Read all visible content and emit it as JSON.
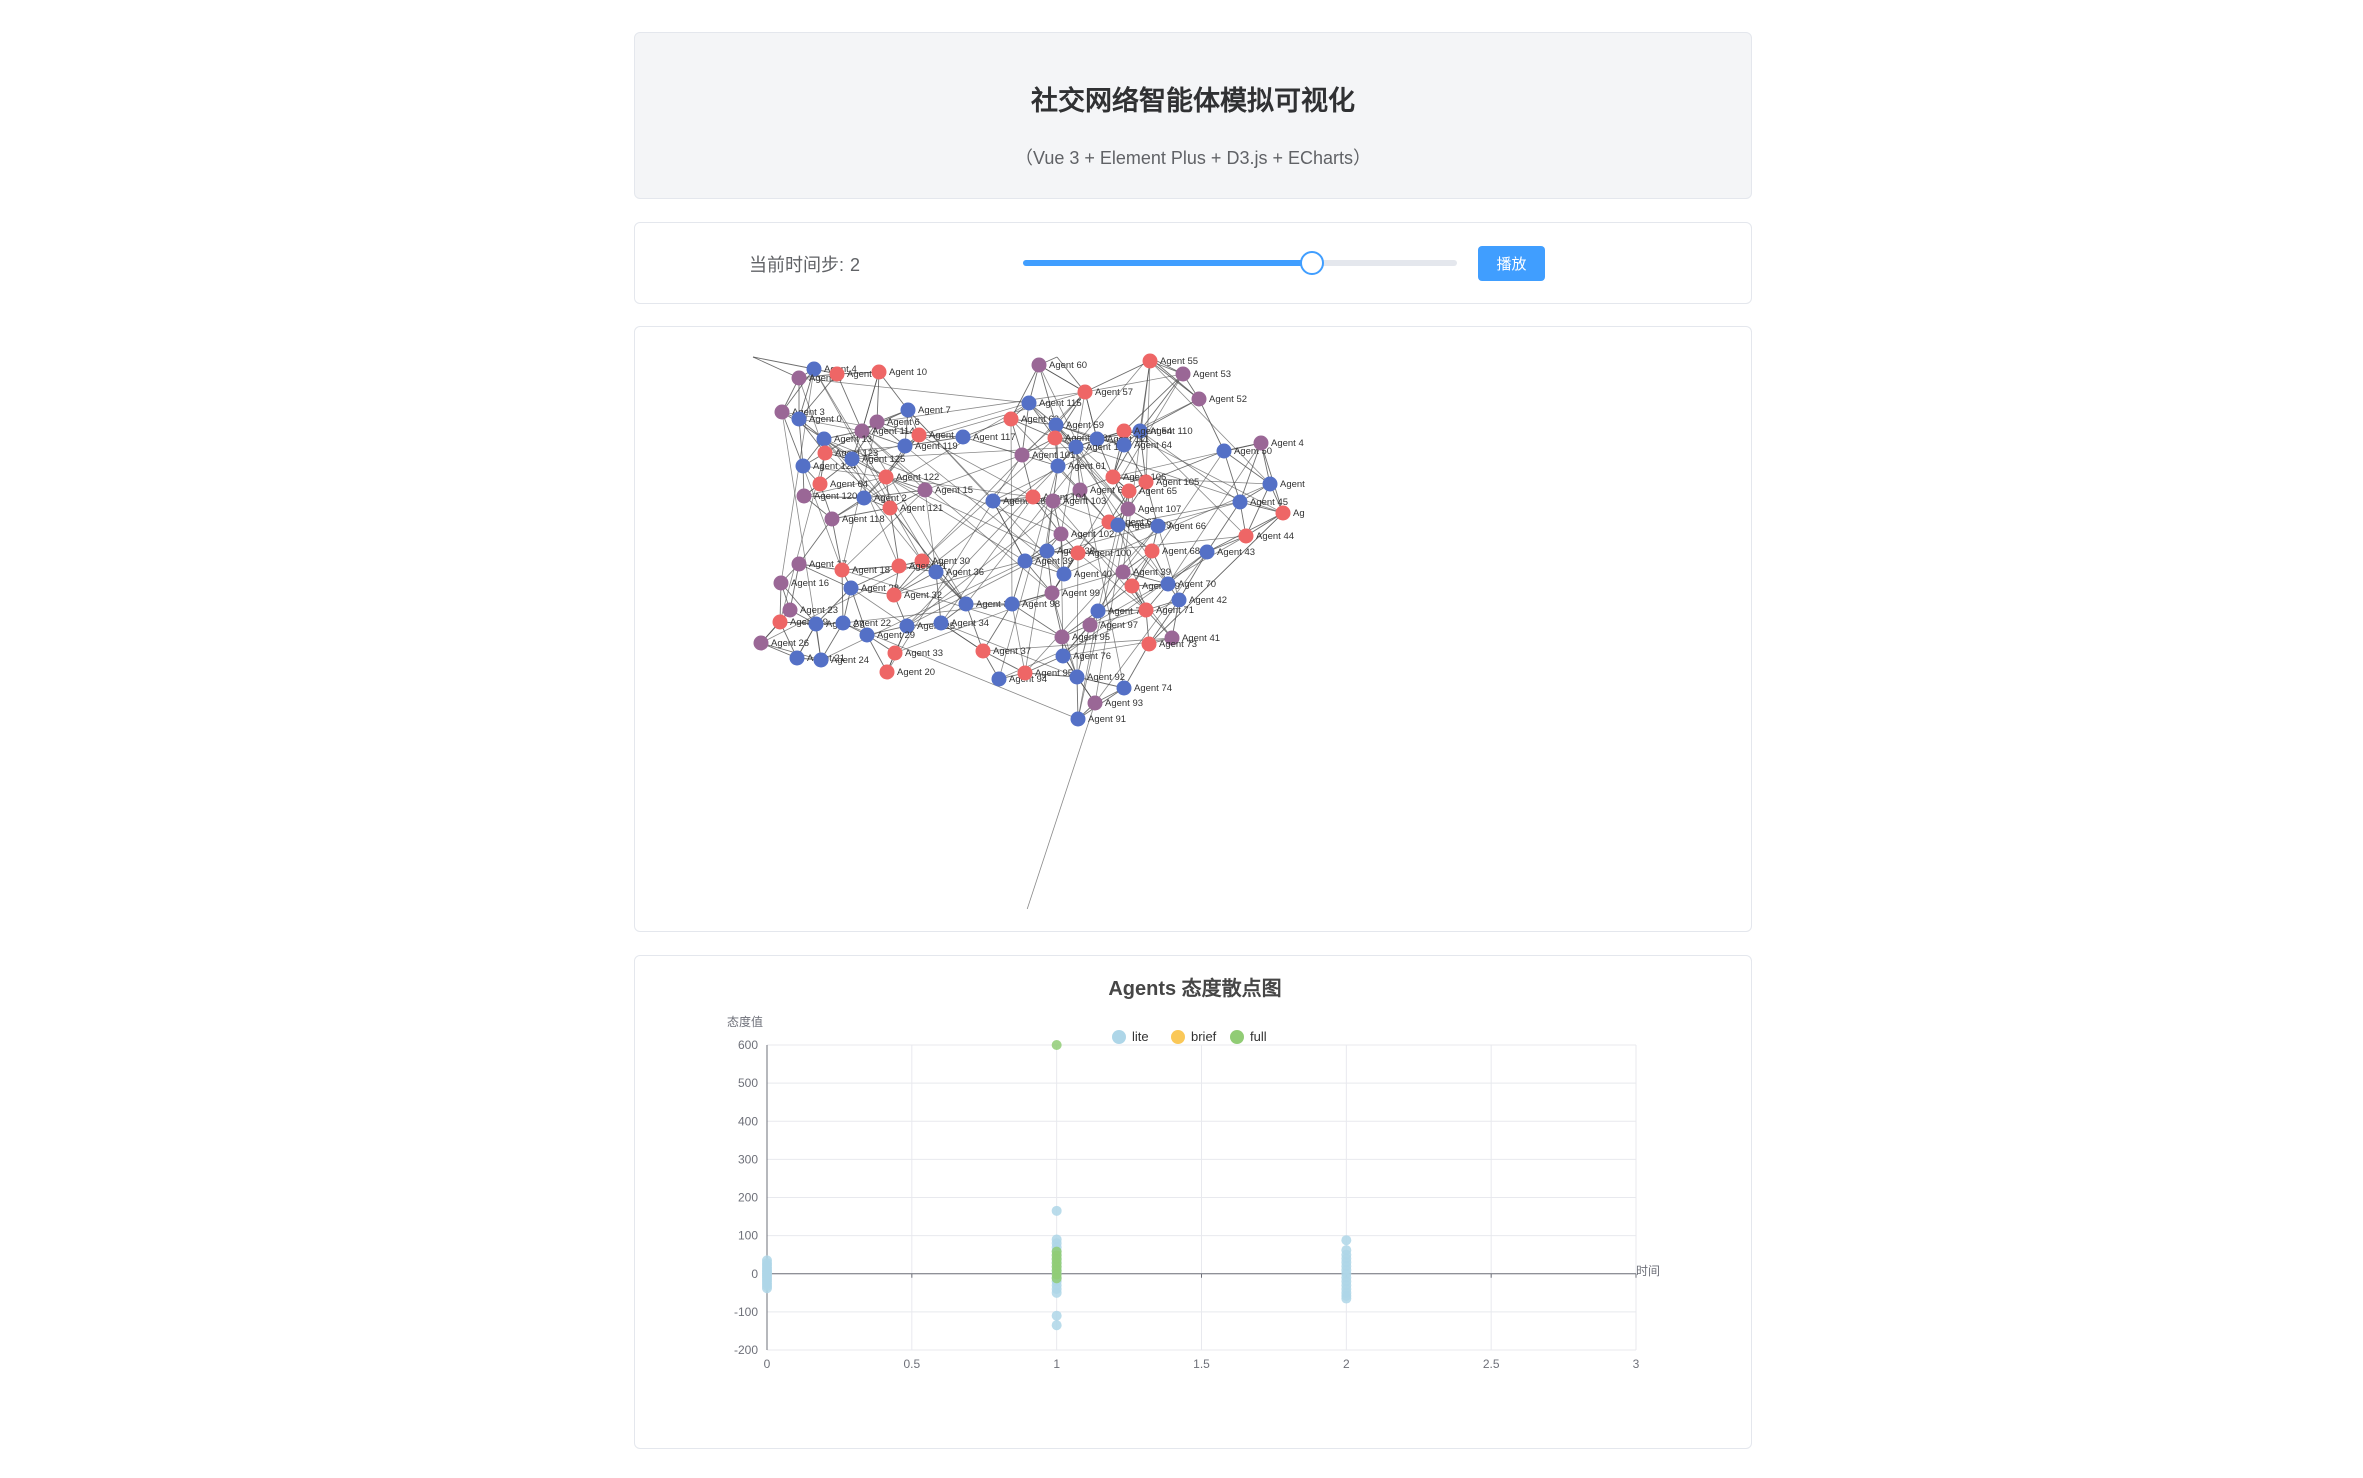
{
  "header": {
    "title": "社交网络智能体模拟可视化",
    "subtitle": "（Vue 3 + Element Plus + D3.js + ECharts）"
  },
  "controls": {
    "step_label": "当前时间步:",
    "step_value": "2",
    "slider": {
      "min": 0,
      "max": 3,
      "value": 2
    },
    "play_label": "播放"
  },
  "network": {
    "colors": {
      "red": "#ee6666",
      "blue": "#5470c6",
      "purple": "#9a6796",
      "edge": "#4a4a4a",
      "label": "#333333"
    },
    "nodes": [
      {
        "label": "Agent 4",
        "c": "blue"
      },
      {
        "label": "Agent 1",
        "c": "purple"
      },
      {
        "label": "Agent 9",
        "c": "red"
      },
      {
        "label": "Agent 10",
        "c": "red"
      },
      {
        "label": "Agent 7",
        "c": "blue"
      },
      {
        "label": "Agent 3",
        "c": "purple"
      },
      {
        "label": "Agent 0",
        "c": "blue"
      },
      {
        "label": "Agent 6",
        "c": "purple"
      },
      {
        "label": "Agent 114",
        "c": "purple"
      },
      {
        "label": "Agent 13",
        "c": "blue"
      },
      {
        "label": "Agent 11",
        "c": "red"
      },
      {
        "label": "Agent 117",
        "c": "blue"
      },
      {
        "label": "Agent 119",
        "c": "blue"
      },
      {
        "label": "Agent 123",
        "c": "red"
      },
      {
        "label": "Agent 124",
        "c": "blue"
      },
      {
        "label": "Agent 125",
        "c": "blue"
      },
      {
        "label": "Agent 122",
        "c": "red"
      },
      {
        "label": "Agent 64",
        "c": "red"
      },
      {
        "label": "Agent 15",
        "c": "purple"
      },
      {
        "label": "Agent 120",
        "c": "purple"
      },
      {
        "label": "Agent 2",
        "c": "blue"
      },
      {
        "label": "Agent 121",
        "c": "red"
      },
      {
        "label": "Agent 118",
        "c": "purple"
      },
      {
        "label": "Agent 60",
        "c": "purple"
      },
      {
        "label": "Agent 55",
        "c": "red"
      },
      {
        "label": "Agent 53",
        "c": "purple"
      },
      {
        "label": "Agent 57",
        "c": "red"
      },
      {
        "label": "Agent 115",
        "c": "blue"
      },
      {
        "label": "Agent 52",
        "c": "purple"
      },
      {
        "label": "Agent 62",
        "c": "red"
      },
      {
        "label": "Agent 59",
        "c": "blue"
      },
      {
        "label": "Agent 110",
        "c": "blue"
      },
      {
        "label": "Agent 54",
        "c": "red"
      },
      {
        "label": "Agent 113",
        "c": "red"
      },
      {
        "label": "Agent 111",
        "c": "blue"
      },
      {
        "label": "Agent 112",
        "c": "blue"
      },
      {
        "label": "Agent 64",
        "c": "blue"
      },
      {
        "label": "Agent 101",
        "c": "purple"
      },
      {
        "label": "Agent 61",
        "c": "blue"
      },
      {
        "label": "Agent 50",
        "c": "blue"
      },
      {
        "label": "Agent 4",
        "c": "purple"
      },
      {
        "label": "Agent 106",
        "c": "red"
      },
      {
        "label": "Agent 105",
        "c": "red"
      },
      {
        "label": "Agent 63",
        "c": "purple"
      },
      {
        "label": "Agent 65",
        "c": "red"
      },
      {
        "label": "Agent",
        "c": "blue"
      },
      {
        "label": "Agent 116",
        "c": "blue"
      },
      {
        "label": "Agent 104",
        "c": "red"
      },
      {
        "label": "Agent 103",
        "c": "purple"
      },
      {
        "label": "Agent 45",
        "c": "blue"
      },
      {
        "label": "Ag",
        "c": "red"
      },
      {
        "label": "Agent 107",
        "c": "purple"
      },
      {
        "label": "Agent 67",
        "c": "red"
      },
      {
        "label": "Agent 109",
        "c": "blue"
      },
      {
        "label": "Agent 66",
        "c": "blue"
      },
      {
        "label": "Agent 102",
        "c": "purple"
      },
      {
        "label": "Agent 44",
        "c": "red"
      },
      {
        "label": "Agent 68",
        "c": "red"
      },
      {
        "label": "Agent 43",
        "c": "blue"
      },
      {
        "label": "Agent 38",
        "c": "blue"
      },
      {
        "label": "Agent 100",
        "c": "red"
      },
      {
        "label": "Agent 17",
        "c": "purple"
      },
      {
        "label": "Agent 18",
        "c": "red"
      },
      {
        "label": "Agent 30",
        "c": "red"
      },
      {
        "label": "Agent 31",
        "c": "red"
      },
      {
        "label": "Agent 36",
        "c": "blue"
      },
      {
        "label": "Agent 39",
        "c": "blue"
      },
      {
        "label": "Agent 40",
        "c": "blue"
      },
      {
        "label": "Agent 39",
        "c": "purple"
      },
      {
        "label": "Agent 16",
        "c": "purple"
      },
      {
        "label": "Agent 28",
        "c": "blue"
      },
      {
        "label": "Agent 32",
        "c": "red"
      },
      {
        "label": "Agent 69",
        "c": "red"
      },
      {
        "label": "Agent 70",
        "c": "blue"
      },
      {
        "label": "Agent 99",
        "c": "purple"
      },
      {
        "label": "Agent 42",
        "c": "blue"
      },
      {
        "label": "Agent 35",
        "c": "blue"
      },
      {
        "label": "Agent 98",
        "c": "blue"
      },
      {
        "label": "Agent 23",
        "c": "purple"
      },
      {
        "label": "Agent 72",
        "c": "blue"
      },
      {
        "label": "Agent 71",
        "c": "red"
      },
      {
        "label": "Agent 19",
        "c": "red"
      },
      {
        "label": "Agent 27",
        "c": "blue"
      },
      {
        "label": "Agent 22",
        "c": "blue"
      },
      {
        "label": "Agent 25",
        "c": "blue"
      },
      {
        "label": "Agent 34",
        "c": "blue"
      },
      {
        "label": "Agent 97",
        "c": "purple"
      },
      {
        "label": "Agent 29",
        "c": "blue"
      },
      {
        "label": "Agent 95",
        "c": "purple"
      },
      {
        "label": "Agent 41",
        "c": "purple"
      },
      {
        "label": "Agent 73",
        "c": "red"
      },
      {
        "label": "Agent 26",
        "c": "purple"
      },
      {
        "label": "Agent 33",
        "c": "red"
      },
      {
        "label": "Agent 37",
        "c": "red"
      },
      {
        "label": "Agent 76",
        "c": "blue"
      },
      {
        "label": "Agent 21",
        "c": "blue"
      },
      {
        "label": "Agent 24",
        "c": "blue"
      },
      {
        "label": "Agent 20",
        "c": "red"
      },
      {
        "label": "Agent 94",
        "c": "blue"
      },
      {
        "label": "Agent 95",
        "c": "red"
      },
      {
        "label": "Agent 92",
        "c": "blue"
      },
      {
        "label": "Agent 74",
        "c": "blue"
      },
      {
        "label": "Agent 93",
        "c": "purple"
      },
      {
        "label": "Agent 91",
        "c": "blue"
      }
    ]
  },
  "chart_data": {
    "type": "scatter",
    "title": "Agents 态度散点图",
    "xlabel": "时间",
    "ylabel": "态度值",
    "xlim": [
      0,
      3
    ],
    "ylim": [
      -200,
      600
    ],
    "x_ticks": [
      "0",
      "0.5",
      "1",
      "1.5",
      "2",
      "2.5",
      "3"
    ],
    "y_ticks": [
      "600",
      "500",
      "400",
      "300",
      "200",
      "100",
      "0",
      "-100",
      "-200"
    ],
    "grid": true,
    "legend_position": "top-center",
    "series": [
      {
        "name": "lite",
        "color": "#aed6e8",
        "points": [
          [
            0,
            35
          ],
          [
            0,
            28
          ],
          [
            0,
            22
          ],
          [
            0,
            16
          ],
          [
            0,
            10
          ],
          [
            0,
            5
          ],
          [
            0,
            0
          ],
          [
            0,
            -4
          ],
          [
            0,
            -9
          ],
          [
            0,
            -14
          ],
          [
            0,
            -20
          ],
          [
            0,
            -26
          ],
          [
            0,
            -32
          ],
          [
            0,
            -38
          ],
          [
            1,
            165
          ],
          [
            1,
            90
          ],
          [
            1,
            80
          ],
          [
            1,
            70
          ],
          [
            1,
            60
          ],
          [
            1,
            50
          ],
          [
            1,
            40
          ],
          [
            1,
            30
          ],
          [
            1,
            20
          ],
          [
            1,
            10
          ],
          [
            1,
            0
          ],
          [
            1,
            -10
          ],
          [
            1,
            -20
          ],
          [
            1,
            -30
          ],
          [
            1,
            -40
          ],
          [
            1,
            -50
          ],
          [
            1,
            -110
          ],
          [
            1,
            -135
          ],
          [
            2,
            88
          ],
          [
            2,
            62
          ],
          [
            2,
            50
          ],
          [
            2,
            40
          ],
          [
            2,
            30
          ],
          [
            2,
            20
          ],
          [
            2,
            10
          ],
          [
            2,
            0
          ],
          [
            2,
            -10
          ],
          [
            2,
            -20
          ],
          [
            2,
            -30
          ],
          [
            2,
            -40
          ],
          [
            2,
            -50
          ],
          [
            2,
            -58
          ],
          [
            2,
            -65
          ]
        ]
      },
      {
        "name": "brief",
        "color": "#fac858",
        "points": []
      },
      {
        "name": "full",
        "color": "#91cc75",
        "points": [
          [
            1,
            600
          ],
          [
            1,
            58
          ],
          [
            1,
            48
          ],
          [
            1,
            38
          ],
          [
            1,
            28
          ],
          [
            1,
            18
          ],
          [
            1,
            8
          ],
          [
            1,
            -2
          ],
          [
            1,
            -12
          ]
        ]
      }
    ]
  }
}
